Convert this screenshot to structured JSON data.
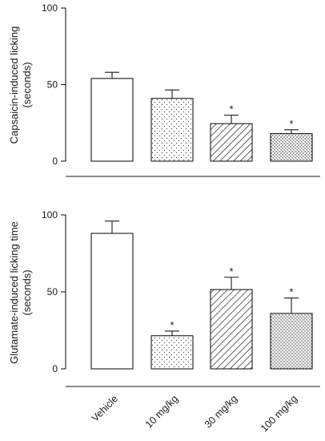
{
  "chart_data": [
    {
      "type": "bar",
      "ylabel_lines": [
        "Capsaicin-induced licking",
        "(seconds)"
      ],
      "ylim": [
        0,
        100
      ],
      "yticks": [
        0,
        50,
        100
      ],
      "categories": [
        "Vehicle",
        "10 mg/kg",
        "30 mg/kg",
        "100 mg/kg"
      ],
      "values": [
        54,
        41,
        24.5,
        18
      ],
      "errors": [
        4,
        5.5,
        5.5,
        2.5
      ],
      "significance": [
        "",
        "",
        "*",
        "*"
      ],
      "patterns": [
        "solid-white",
        "dots-sparse",
        "diagonal-hatch",
        "dots-dense"
      ]
    },
    {
      "type": "bar",
      "ylabel_lines": [
        "Glutamate-induced licking time",
        "(seconds)"
      ],
      "ylim": [
        0,
        100
      ],
      "yticks": [
        0,
        50,
        100
      ],
      "categories": [
        "Vehicle",
        "10 mg/kg",
        "30 mg/kg",
        "100 mg/kg"
      ],
      "values": [
        88,
        21.5,
        51.5,
        36
      ],
      "errors": [
        8,
        3,
        8,
        10
      ],
      "significance": [
        "",
        "*",
        "*",
        "*"
      ],
      "patterns": [
        "solid-white",
        "dots-sparse",
        "diagonal-hatch",
        "dots-dense"
      ]
    }
  ],
  "x_axis": {
    "tick_labels": [
      "Vehicle",
      "10 mg/kg",
      "30 mg/kg",
      "100 mg/kg"
    ]
  },
  "colors": {
    "ink": "#1a1a1a",
    "background": "#ffffff"
  }
}
